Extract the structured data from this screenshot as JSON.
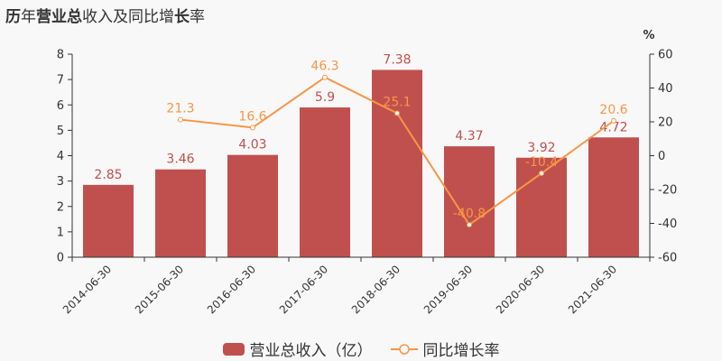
{
  "title": {
    "parts": [
      {
        "text": "历",
        "bold": true
      },
      {
        "text": "年",
        "bold": false
      },
      {
        "text": "营业总",
        "bold": true
      },
      {
        "text": "收入及同比增",
        "bold": false
      },
      {
        "text": "长",
        "bold": true
      },
      {
        "text": "率",
        "bold": false
      }
    ],
    "full": "历年营业总收入及同比增长率"
  },
  "colors": {
    "bar": "#c0504d",
    "line": "#f79646",
    "axis": "#333333",
    "text": "#333333",
    "background": "#f8f8f8"
  },
  "right_axis_unit": "%",
  "legend": [
    {
      "label": "营业总收入（亿）",
      "type": "bar"
    },
    {
      "label": "同比增长率",
      "type": "line"
    }
  ],
  "chart_data": {
    "type": "bar",
    "title": "历年营业总收入及同比增长率",
    "categories": [
      "2014-06-30",
      "2015-06-30",
      "2016-06-30",
      "2017-06-30",
      "2018-06-30",
      "2019-06-30",
      "2020-06-30",
      "2021-06-30"
    ],
    "series": [
      {
        "name": "营业总收入（亿）",
        "type": "bar",
        "axis": "left",
        "values": [
          2.85,
          3.46,
          4.03,
          5.9,
          7.38,
          4.37,
          3.92,
          4.72
        ]
      },
      {
        "name": "同比增长率",
        "type": "line",
        "axis": "right",
        "values": [
          null,
          21.3,
          16.6,
          46.3,
          25.1,
          -40.8,
          -10.4,
          20.6
        ]
      }
    ],
    "xlabel": "",
    "ylabel": "",
    "ylabel_right": "%",
    "ylim": [
      0,
      8
    ],
    "ylim_right": [
      -60,
      60
    ],
    "yticks": [
      0,
      1,
      2,
      3,
      4,
      5,
      6,
      7,
      8
    ],
    "yticks_right": [
      -60,
      -40,
      -20,
      0,
      20,
      40,
      60
    ],
    "grid": false,
    "legend_position": "bottom"
  }
}
